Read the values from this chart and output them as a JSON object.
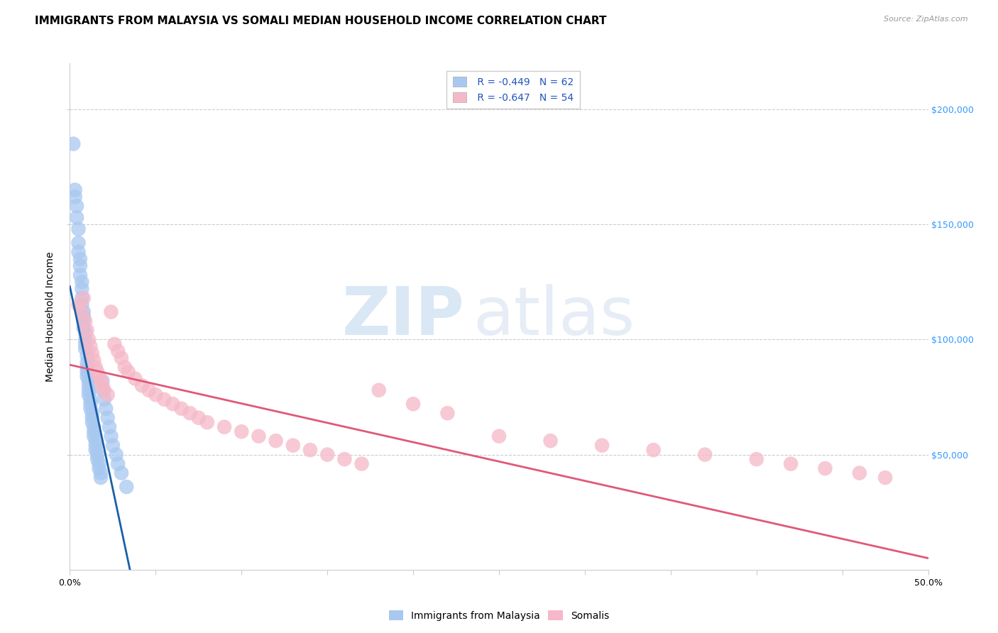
{
  "title": "IMMIGRANTS FROM MALAYSIA VS SOMALI MEDIAN HOUSEHOLD INCOME CORRELATION CHART",
  "source": "Source: ZipAtlas.com",
  "ylabel": "Median Household Income",
  "xlim": [
    0.0,
    0.5
  ],
  "ylim": [
    0,
    220000
  ],
  "xtick_values": [
    0.0,
    0.05,
    0.1,
    0.15,
    0.2,
    0.25,
    0.3,
    0.35,
    0.4,
    0.45,
    0.5
  ],
  "ytick_values": [
    50000,
    100000,
    150000,
    200000
  ],
  "ytick_labels": [
    "$50,000",
    "$100,000",
    "$150,000",
    "$200,000"
  ],
  "series": [
    {
      "name": "Immigrants from Malaysia",
      "R": -0.449,
      "N": 62,
      "color": "#A8C8F0",
      "line_color": "#1A5FA8"
    },
    {
      "name": "Somalis",
      "R": -0.647,
      "N": 54,
      "color": "#F5B8C8",
      "line_color": "#E05878"
    }
  ],
  "malaysia_x": [
    0.002,
    0.003,
    0.003,
    0.004,
    0.004,
    0.005,
    0.005,
    0.005,
    0.006,
    0.006,
    0.006,
    0.007,
    0.007,
    0.007,
    0.007,
    0.008,
    0.008,
    0.008,
    0.008,
    0.009,
    0.009,
    0.009,
    0.009,
    0.01,
    0.01,
    0.01,
    0.01,
    0.01,
    0.011,
    0.011,
    0.011,
    0.011,
    0.012,
    0.012,
    0.012,
    0.013,
    0.013,
    0.013,
    0.014,
    0.014,
    0.014,
    0.015,
    0.015,
    0.015,
    0.016,
    0.016,
    0.017,
    0.017,
    0.018,
    0.018,
    0.019,
    0.019,
    0.02,
    0.021,
    0.022,
    0.023,
    0.024,
    0.025,
    0.027,
    0.028,
    0.03,
    0.033
  ],
  "malaysia_y": [
    185000,
    165000,
    162000,
    158000,
    153000,
    148000,
    142000,
    138000,
    135000,
    132000,
    128000,
    125000,
    122000,
    118000,
    115000,
    112000,
    110000,
    108000,
    105000,
    103000,
    100000,
    98000,
    96000,
    93000,
    90000,
    88000,
    86000,
    84000,
    82000,
    80000,
    78000,
    76000,
    74000,
    72000,
    70000,
    68000,
    66000,
    64000,
    62000,
    60000,
    58000,
    56000,
    54000,
    52000,
    50000,
    48000,
    46000,
    44000,
    42000,
    40000,
    82000,
    78000,
    74000,
    70000,
    66000,
    62000,
    58000,
    54000,
    50000,
    46000,
    42000,
    36000
  ],
  "somali_x": [
    0.005,
    0.007,
    0.008,
    0.009,
    0.01,
    0.011,
    0.012,
    0.013,
    0.014,
    0.015,
    0.016,
    0.017,
    0.018,
    0.019,
    0.02,
    0.022,
    0.024,
    0.026,
    0.028,
    0.03,
    0.032,
    0.034,
    0.038,
    0.042,
    0.046,
    0.05,
    0.055,
    0.06,
    0.065,
    0.07,
    0.075,
    0.08,
    0.09,
    0.1,
    0.11,
    0.12,
    0.13,
    0.14,
    0.15,
    0.16,
    0.17,
    0.18,
    0.2,
    0.22,
    0.25,
    0.28,
    0.31,
    0.34,
    0.37,
    0.4,
    0.42,
    0.44,
    0.46,
    0.475
  ],
  "somali_y": [
    115000,
    112000,
    118000,
    108000,
    104000,
    100000,
    97000,
    94000,
    91000,
    88000,
    86000,
    84000,
    82000,
    80000,
    78000,
    76000,
    112000,
    98000,
    95000,
    92000,
    88000,
    86000,
    83000,
    80000,
    78000,
    76000,
    74000,
    72000,
    70000,
    68000,
    66000,
    64000,
    62000,
    60000,
    58000,
    56000,
    54000,
    52000,
    50000,
    48000,
    46000,
    78000,
    72000,
    68000,
    58000,
    56000,
    54000,
    52000,
    50000,
    48000,
    46000,
    44000,
    42000,
    40000
  ],
  "malaysia_line_x": [
    0.0,
    0.035
  ],
  "malaysia_line_y": [
    123000,
    0
  ],
  "somali_line_x": [
    0.0,
    0.5
  ],
  "somali_line_y": [
    89000,
    5000
  ],
  "watermark_zip": "ZIP",
  "watermark_atlas": "atlas",
  "background_color": "#FFFFFF",
  "grid_color": "#CCCCCC",
  "title_fontsize": 11,
  "axis_label_fontsize": 10,
  "tick_fontsize": 9,
  "legend_fontsize": 10
}
